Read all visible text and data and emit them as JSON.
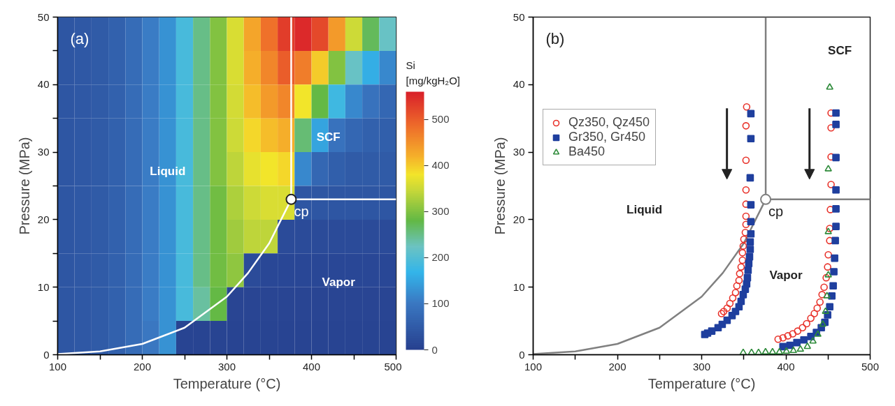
{
  "chart_data": [
    {
      "type": "heatmap",
      "title": "(a)",
      "xlabel": "Temperature (°C)",
      "ylabel": "Pressure (MPa)",
      "clabel": "Si [mg/kgH₂O]",
      "x": [
        110,
        130,
        150,
        170,
        190,
        210,
        230,
        250,
        270,
        290,
        310,
        330,
        350,
        370,
        390,
        410,
        430,
        450,
        470,
        490
      ],
      "y": [
        47.5,
        42.5,
        37.5,
        32.5,
        27.5,
        22.5,
        17.5,
        12.5,
        7.5,
        2.5
      ],
      "cells": [
        [
          40,
          45,
          50,
          60,
          80,
          105,
          130,
          190,
          250,
          300,
          360,
          430,
          480,
          530,
          550,
          520,
          440,
          350,
          270,
          220
        ],
        [
          40,
          45,
          50,
          60,
          80,
          105,
          130,
          190,
          250,
          300,
          360,
          420,
          460,
          500,
          470,
          400,
          300,
          220,
          160,
          120
        ],
        [
          40,
          45,
          50,
          60,
          80,
          105,
          130,
          190,
          250,
          300,
          355,
          410,
          440,
          460,
          380,
          280,
          180,
          120,
          90,
          70
        ],
        [
          40,
          45,
          50,
          60,
          80,
          105,
          130,
          190,
          250,
          300,
          350,
          390,
          410,
          420,
          260,
          150,
          90,
          70,
          60,
          55
        ],
        [
          40,
          45,
          50,
          60,
          80,
          105,
          130,
          190,
          250,
          300,
          340,
          370,
          380,
          390,
          120,
          70,
          55,
          50,
          50,
          50
        ],
        [
          40,
          45,
          50,
          60,
          80,
          105,
          130,
          190,
          250,
          290,
          330,
          350,
          360,
          360,
          40,
          40,
          40,
          40,
          40,
          40
        ],
        [
          40,
          45,
          50,
          60,
          80,
          105,
          130,
          190,
          250,
          290,
          320,
          340,
          340,
          20,
          20,
          20,
          20,
          20,
          20,
          20
        ],
        [
          40,
          45,
          50,
          60,
          80,
          105,
          130,
          190,
          250,
          290,
          310,
          20,
          15,
          15,
          15,
          15,
          15,
          15,
          15,
          15
        ],
        [
          40,
          45,
          50,
          60,
          80,
          105,
          130,
          190,
          240,
          280,
          10,
          10,
          10,
          10,
          10,
          10,
          10,
          10,
          10,
          10
        ],
        [
          40,
          45,
          50,
          60,
          80,
          100,
          130,
          8,
          8,
          8,
          8,
          8,
          8,
          8,
          8,
          8,
          8,
          8,
          8,
          8
        ]
      ],
      "clim": [
        0,
        560
      ],
      "cticks": [
        0,
        100,
        200,
        300,
        400,
        500
      ],
      "xlim": [
        100,
        500
      ],
      "xticks": [
        100,
        {
          "value": 150,
          "label": null
        },
        200,
        {
          "value": 250,
          "label": null
        },
        300,
        {
          "value": 350,
          "label": null
        },
        400,
        {
          "value": 450,
          "label": null
        },
        500
      ],
      "ylim": [
        0,
        50
      ],
      "yticks": [
        0,
        {
          "value": 5,
          "label": null
        },
        10,
        {
          "value": 15,
          "label": null
        },
        20,
        {
          "value": 25,
          "label": null
        },
        30,
        {
          "value": 35,
          "label": null
        },
        40,
        {
          "value": 45,
          "label": null
        },
        50
      ],
      "series": [
        {
          "type": "line",
          "color": "#ffffff",
          "x": [
            100,
            150,
            200,
            250,
            300,
            325,
            350,
            376
          ],
          "values": [
            0.1,
            0.5,
            1.6,
            4.0,
            8.6,
            12.1,
            16.5,
            23
          ]
        },
        {
          "type": "line",
          "color": "#ffffff",
          "x": [
            376,
            376
          ],
          "values": [
            23,
            50
          ]
        },
        {
          "type": "line",
          "color": "#ffffff",
          "x": [
            376,
            500
          ],
          "values": [
            23,
            23
          ]
        },
        {
          "type": "scatter",
          "color": "#222222",
          "marker": "circle",
          "x": [
            376
          ],
          "values": [
            23
          ]
        }
      ],
      "annotations": [
        "Liquid",
        "SCF",
        "Vapor",
        {
          "text": "cp",
          "x": 376,
          "y": 23
        }
      ]
    },
    {
      "type": "scatter",
      "title": "(b)",
      "xlabel": "Temperature (°C)",
      "ylabel": "Pressure (MPa)",
      "legend": "top left",
      "xlim": [
        100,
        500
      ],
      "xticks": [
        100,
        {
          "value": 150,
          "label": null
        },
        200,
        {
          "value": 250,
          "label": null
        },
        300,
        {
          "value": 350,
          "label": null
        },
        400,
        {
          "value": 450,
          "label": null
        },
        500
      ],
      "ylim": [
        0,
        50
      ],
      "yticks": [
        0,
        10,
        20,
        30,
        40,
        50
      ],
      "series": [
        {
          "type": "line",
          "color": "#808080",
          "x": [
            100,
            150,
            200,
            250,
            300,
            325,
            350,
            376
          ],
          "values": [
            0.1,
            0.5,
            1.6,
            4.0,
            8.6,
            12.1,
            16.5,
            23
          ]
        },
        {
          "type": "line",
          "color": "#808080",
          "x": [
            376,
            376
          ],
          "values": [
            23,
            50
          ]
        },
        {
          "type": "line",
          "color": "#808080",
          "x": [
            376,
            500
          ],
          "values": [
            23,
            23
          ]
        },
        {
          "type": "scatter",
          "name": "Qz350, Qz450",
          "color": "#e8322a",
          "marker": "circle",
          "x": [
            353.4,
            352.6,
            352.6,
            352.6,
            352.6,
            352.6,
            352.6,
            351.8,
            350.1,
            349.3,
            348.4,
            348.4,
            346.8,
            345.1,
            344.3,
            341.8,
            340.2,
            336.9,
            333.5,
            330.2,
            326.1,
            323.6,
            390.7,
            396.5,
            402.3,
            408.1,
            413.9,
            419.7,
            424.6,
            429.6,
            433.7,
            437.1,
            440.4,
            442.9,
            445.3,
            447.8,
            449.5,
            450.3,
            452.0,
            452.0,
            452.8,
            453.6,
            453.6,
            453.6,
            453.6
          ],
          "values": [
            36.7,
            33.9,
            28.8,
            24.4,
            22.3,
            20.5,
            19.3,
            18.1,
            17.1,
            16.1,
            15.1,
            14.0,
            13.0,
            12.0,
            11.0,
            10.2,
            9.2,
            8.4,
            7.6,
            6.9,
            6.4,
            6.1,
            2.3,
            2.5,
            2.8,
            3.1,
            3.5,
            4.0,
            4.6,
            5.4,
            6.1,
            6.9,
            7.8,
            8.9,
            10.0,
            11.4,
            13.0,
            14.8,
            16.9,
            18.7,
            21.5,
            25.2,
            29.3,
            33.6,
            35.8
          ]
        },
        {
          "type": "scatter",
          "name": "Gr350, Gr450",
          "color": "#1f3f9e",
          "marker": "square",
          "x": [
            358.4,
            358.4,
            357.6,
            358.4,
            358.4,
            358.4,
            357.6,
            357.6,
            356.8,
            355.9,
            355.1,
            354.3,
            353.4,
            351.8,
            349.3,
            346.8,
            344.3,
            340.2,
            336.1,
            330.2,
            324.4,
            319.5,
            312.0,
            307.0,
            303.7,
            396.5,
            404.8,
            413.0,
            421.3,
            429.6,
            436.2,
            442.0,
            446.2,
            449.5,
            452.0,
            454.5,
            456.1,
            456.9,
            457.8,
            458.6,
            459.4,
            459.4,
            459.4,
            459.4,
            459.4,
            459.4
          ],
          "values": [
            35.7,
            32.0,
            26.2,
            22.2,
            19.7,
            17.9,
            16.7,
            15.6,
            14.5,
            13.5,
            12.5,
            11.4,
            10.5,
            9.7,
            8.9,
            7.9,
            7.1,
            6.4,
            5.8,
            5.1,
            4.5,
            4.0,
            3.5,
            3.2,
            3.0,
            1.2,
            1.4,
            1.8,
            2.2,
            2.7,
            3.3,
            4.0,
            4.8,
            5.9,
            7.1,
            8.7,
            10.2,
            12.3,
            14.3,
            16.9,
            19.0,
            21.6,
            24.4,
            29.2,
            34.1,
            35.8
          ]
        },
        {
          "type": "scatter",
          "name": "Ba450",
          "color": "#2e8b3a",
          "marker": "triangle",
          "x": [
            349.3,
            359.2,
            367.5,
            375.8,
            384.1,
            392.3,
            400.6,
            408.9,
            417.2,
            425.5,
            432.1,
            437.9,
            443.7,
            447.0,
            448.7,
            450.3,
            450.3,
            450.3,
            452.0
          ],
          "values": [
            0.3,
            0.3,
            0.3,
            0.4,
            0.4,
            0.4,
            0.5,
            0.6,
            0.8,
            1.2,
            2.0,
            3.0,
            4.5,
            6.4,
            8.7,
            11.8,
            18.2,
            27.5,
            39.6
          ]
        },
        {
          "type": "scatter",
          "color": "#808080",
          "marker": "circle",
          "x": [
            376
          ],
          "values": [
            23
          ]
        }
      ],
      "annotations": [
        "Liquid",
        "SCF",
        "Vapor",
        {
          "text": "cp",
          "x": 376,
          "y": 23
        }
      ]
    }
  ]
}
